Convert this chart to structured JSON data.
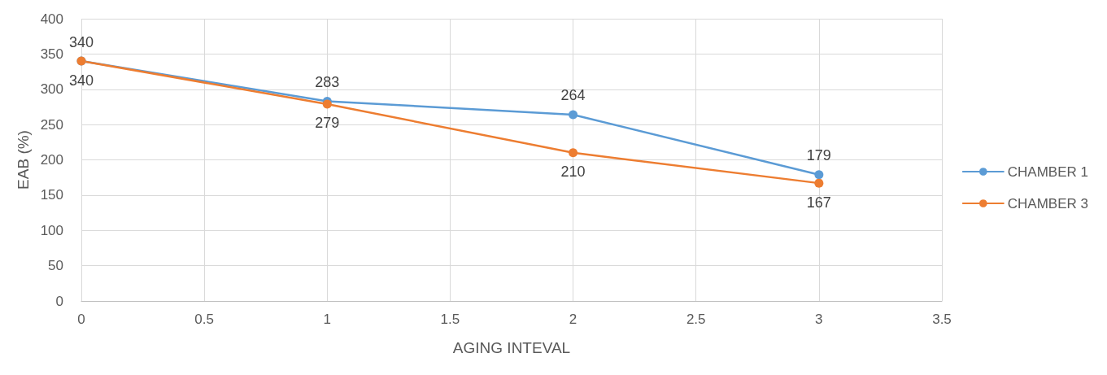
{
  "chart_data": {
    "type": "line",
    "xlabel": "AGING INTEVAL",
    "ylabel": "EAB (%)",
    "xlim": [
      0,
      3.5
    ],
    "xticks": [
      0,
      0.5,
      1,
      1.5,
      2,
      2.5,
      3,
      3.5
    ],
    "ylim": [
      0,
      400
    ],
    "yticks": [
      0,
      50,
      100,
      150,
      200,
      250,
      300,
      350,
      400
    ],
    "x": [
      0,
      1,
      2,
      3
    ],
    "series": [
      {
        "name": "CHAMBER 1",
        "color": "#5b9bd5",
        "values": [
          340,
          283,
          264,
          179
        ]
      },
      {
        "name": "CHAMBER 3",
        "color": "#ed7d31",
        "values": [
          340,
          279,
          210,
          167
        ]
      }
    ],
    "data_labels": true,
    "grid": true,
    "legend": "right",
    "marker": "circle",
    "line_style": "solid"
  }
}
